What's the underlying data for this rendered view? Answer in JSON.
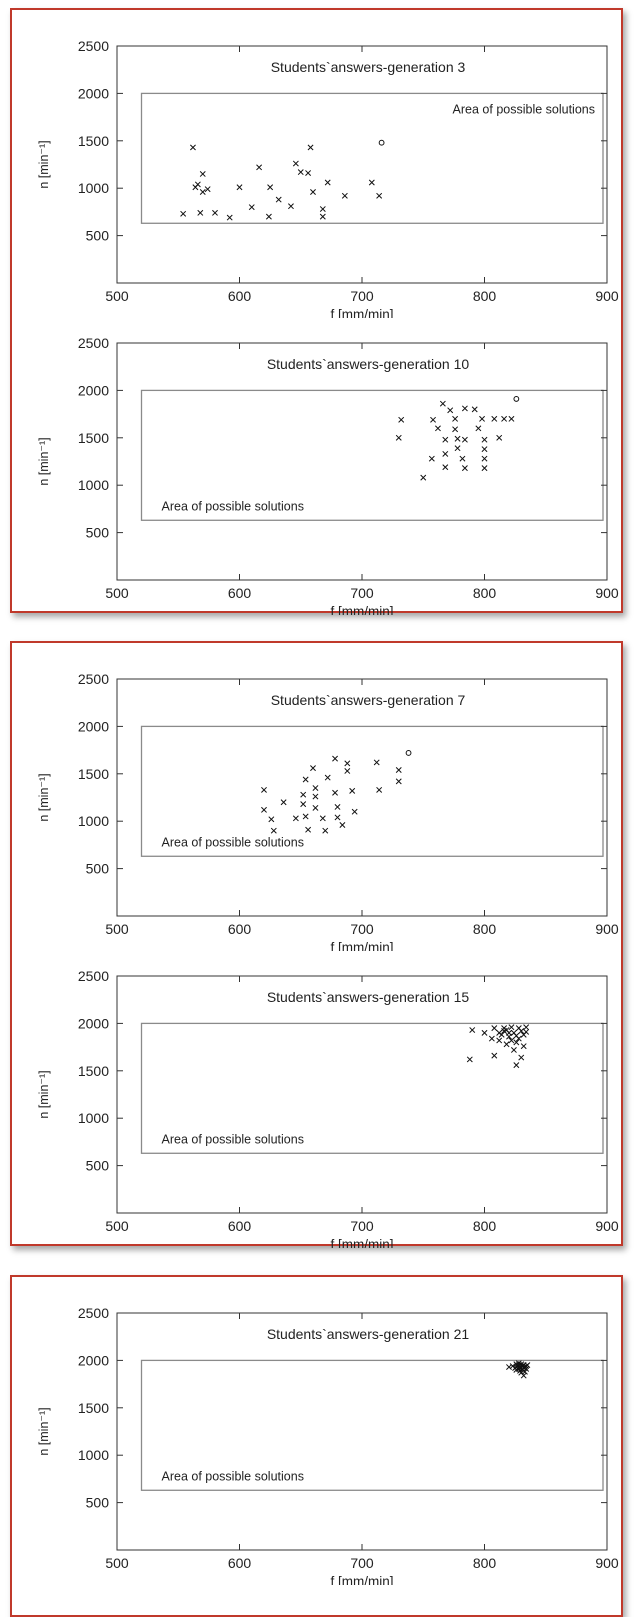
{
  "colors": {
    "frame_border": "#c0392b",
    "axis": "#333333",
    "region": "#8a8a8a",
    "marker": "#111111"
  },
  "chart_data": [
    {
      "type": "scatter",
      "title": "Students`answers-generation 3",
      "xlabel": "f [mm/min]",
      "ylabel": "n [min⁻¹]",
      "xlim": [
        500,
        900
      ],
      "ylim": [
        0,
        2500
      ],
      "xticks": [
        "500",
        "600",
        "700",
        "800",
        "900"
      ],
      "yticks": [
        "500",
        "1000",
        "1500",
        "2000",
        "2500"
      ],
      "region": {
        "x": [
          520,
          900
        ],
        "y": [
          630,
          2000
        ],
        "label": "Area of possible solutions",
        "label_pos": "top-right"
      },
      "points": [
        [
          554,
          730
        ],
        [
          562,
          1430
        ],
        [
          564,
          1010
        ],
        [
          566,
          1040
        ],
        [
          568,
          740
        ],
        [
          570,
          1150
        ],
        [
          570,
          960
        ],
        [
          574,
          990
        ],
        [
          580,
          740
        ],
        [
          592,
          690
        ],
        [
          600,
          1010
        ],
        [
          610,
          800
        ],
        [
          616,
          1220
        ],
        [
          624,
          700
        ],
        [
          625,
          1010
        ],
        [
          632,
          880
        ],
        [
          642,
          810
        ],
        [
          646,
          1260
        ],
        [
          650,
          1170
        ],
        [
          656,
          1160
        ],
        [
          658,
          1430
        ],
        [
          660,
          960
        ],
        [
          668,
          780
        ],
        [
          668,
          700
        ],
        [
          672,
          1060
        ],
        [
          686,
          920
        ],
        [
          708,
          1060
        ],
        [
          714,
          920
        ]
      ],
      "outliers": [
        [
          716,
          1480
        ]
      ]
    },
    {
      "type": "scatter",
      "title": "Students`answers-generation 10",
      "xlabel": "f [mm/min]",
      "ylabel": "n [min⁻¹]",
      "xlim": [
        500,
        900
      ],
      "ylim": [
        0,
        2500
      ],
      "xticks": [
        "500",
        "600",
        "700",
        "800",
        "900"
      ],
      "yticks": [
        "500",
        "1000",
        "1500",
        "2000",
        "2500"
      ],
      "region": {
        "x": [
          520,
          900
        ],
        "y": [
          630,
          2000
        ],
        "label": "Area of possible solutions",
        "label_pos": "bottom-left"
      },
      "points": [
        [
          730,
          1500
        ],
        [
          732,
          1690
        ],
        [
          750,
          1080
        ],
        [
          757,
          1280
        ],
        [
          758,
          1690
        ],
        [
          762,
          1600
        ],
        [
          766,
          1860
        ],
        [
          768,
          1480
        ],
        [
          768,
          1330
        ],
        [
          768,
          1190
        ],
        [
          772,
          1790
        ],
        [
          776,
          1700
        ],
        [
          776,
          1590
        ],
        [
          778,
          1490
        ],
        [
          778,
          1390
        ],
        [
          782,
          1280
        ],
        [
          784,
          1810
        ],
        [
          784,
          1480
        ],
        [
          784,
          1180
        ],
        [
          792,
          1800
        ],
        [
          795,
          1600
        ],
        [
          798,
          1700
        ],
        [
          800,
          1480
        ],
        [
          800,
          1380
        ],
        [
          800,
          1280
        ],
        [
          800,
          1180
        ],
        [
          808,
          1700
        ],
        [
          812,
          1500
        ],
        [
          816,
          1700
        ],
        [
          822,
          1700
        ]
      ],
      "outliers": [
        [
          826,
          1910
        ]
      ]
    },
    {
      "type": "scatter",
      "title": "Students`answers-generation 7",
      "xlabel": "f [mm/min]",
      "ylabel": "n [min⁻¹]",
      "xlim": [
        500,
        900
      ],
      "ylim": [
        0,
        2500
      ],
      "xticks": [
        "500",
        "600",
        "700",
        "800",
        "900"
      ],
      "yticks": [
        "500",
        "1000",
        "1500",
        "2000",
        "2500"
      ],
      "region": {
        "x": [
          520,
          900
        ],
        "y": [
          630,
          2000
        ],
        "label": "Area of possible solutions",
        "label_pos": "bottom-left"
      },
      "points": [
        [
          620,
          1330
        ],
        [
          620,
          1120
        ],
        [
          626,
          1020
        ],
        [
          628,
          900
        ],
        [
          636,
          1200
        ],
        [
          646,
          1030
        ],
        [
          652,
          1280
        ],
        [
          652,
          1180
        ],
        [
          654,
          1440
        ],
        [
          654,
          1050
        ],
        [
          656,
          910
        ],
        [
          660,
          1560
        ],
        [
          662,
          1350
        ],
        [
          662,
          1260
        ],
        [
          662,
          1140
        ],
        [
          668,
          1030
        ],
        [
          670,
          900
        ],
        [
          672,
          1460
        ],
        [
          678,
          1660
        ],
        [
          678,
          1300
        ],
        [
          680,
          1150
        ],
        [
          680,
          1040
        ],
        [
          684,
          960
        ],
        [
          688,
          1610
        ],
        [
          688,
          1530
        ],
        [
          692,
          1320
        ],
        [
          694,
          1100
        ],
        [
          712,
          1620
        ],
        [
          714,
          1330
        ],
        [
          730,
          1540
        ],
        [
          730,
          1420
        ]
      ],
      "outliers": [
        [
          738,
          1720
        ]
      ]
    },
    {
      "type": "scatter",
      "title": "Students`answers-generation 15",
      "xlabel": "f [mm/min]",
      "ylabel": "n [min⁻¹]",
      "xlim": [
        500,
        900
      ],
      "ylim": [
        0,
        2500
      ],
      "xticks": [
        "500",
        "600",
        "700",
        "800",
        "900"
      ],
      "yticks": [
        "500",
        "1000",
        "1500",
        "2000",
        "2500"
      ],
      "region": {
        "x": [
          520,
          900
        ],
        "y": [
          630,
          2000
        ],
        "label": "Area of possible solutions",
        "label_pos": "bottom-left"
      },
      "points": [
        [
          788,
          1620
        ],
        [
          790,
          1930
        ],
        [
          800,
          1900
        ],
        [
          806,
          1840
        ],
        [
          808,
          1950
        ],
        [
          808,
          1660
        ],
        [
          812,
          1900
        ],
        [
          814,
          1880
        ],
        [
          816,
          1950
        ],
        [
          818,
          1780
        ],
        [
          818,
          1930
        ],
        [
          820,
          1900
        ],
        [
          820,
          1860
        ],
        [
          822,
          1960
        ],
        [
          822,
          1820
        ],
        [
          824,
          1900
        ],
        [
          824,
          1720
        ],
        [
          826,
          1870
        ],
        [
          826,
          1560
        ],
        [
          828,
          1950
        ],
        [
          828,
          1840
        ],
        [
          830,
          1920
        ],
        [
          830,
          1640
        ],
        [
          832,
          1880
        ],
        [
          832,
          1760
        ],
        [
          834,
          1960
        ],
        [
          834,
          1910
        ],
        [
          812,
          1820
        ],
        [
          826,
          1800
        ],
        [
          816,
          1920
        ]
      ],
      "outliers": []
    },
    {
      "type": "scatter",
      "title": "Students`answers-generation 21",
      "xlabel": "f [mm/min]",
      "ylabel": "n [min⁻¹]",
      "xlim": [
        500,
        900
      ],
      "ylim": [
        0,
        2500
      ],
      "xticks": [
        "500",
        "600",
        "700",
        "800",
        "900"
      ],
      "yticks": [
        "500",
        "1000",
        "1500",
        "2000",
        "2500"
      ],
      "region": {
        "x": [
          520,
          900
        ],
        "y": [
          630,
          2000
        ],
        "label": "Area of possible solutions",
        "label_pos": "bottom-left"
      },
      "points": [
        [
          820,
          1930
        ],
        [
          823,
          1940
        ],
        [
          825,
          1920
        ],
        [
          826,
          1960
        ],
        [
          826,
          1900
        ],
        [
          827,
          1940
        ],
        [
          828,
          1950
        ],
        [
          828,
          1910
        ],
        [
          829,
          1930
        ],
        [
          829,
          1890
        ],
        [
          830,
          1960
        ],
        [
          830,
          1920
        ],
        [
          830,
          1870
        ],
        [
          831,
          1940
        ],
        [
          831,
          1900
        ],
        [
          832,
          1950
        ],
        [
          832,
          1920
        ],
        [
          833,
          1930
        ],
        [
          833,
          1880
        ],
        [
          834,
          1940
        ],
        [
          834,
          1910
        ],
        [
          835,
          1950
        ],
        [
          826,
          1930
        ],
        [
          832,
          1840
        ],
        [
          828,
          1970
        ]
      ],
      "outliers": []
    }
  ]
}
